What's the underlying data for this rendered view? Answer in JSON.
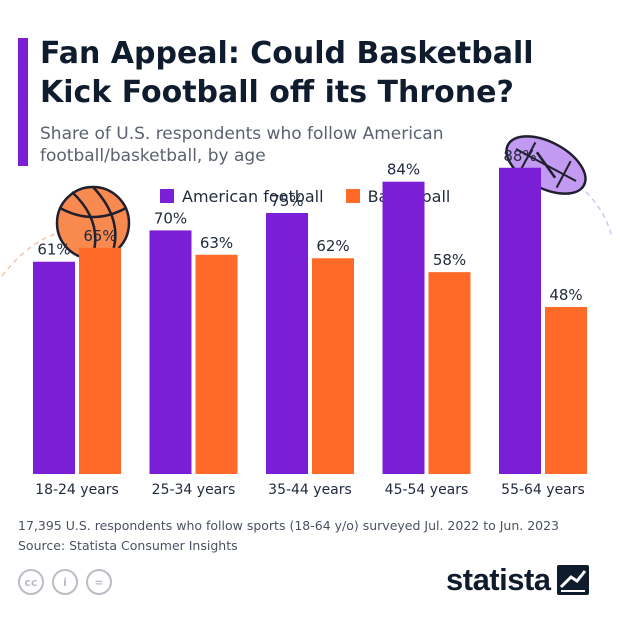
{
  "title": "Fan Appeal: Could Basketball Kick Football off its Throne?",
  "subtitle": "Share of U.S. respondents who follow American football/basketball, by age",
  "colors": {
    "accent": "#7a1fd6",
    "football": "#7a1fd6",
    "basketball": "#ff6a28"
  },
  "chart_data": {
    "type": "bar",
    "title": "Fan Appeal: Could Basketball Kick Football off its Throne?",
    "subtitle": "Share of U.S. respondents who follow American football/basketball, by age",
    "categories": [
      "18-24 years",
      "25-34 years",
      "35-44 years",
      "45-54 years",
      "55-64 years"
    ],
    "series": [
      {
        "name": "American football",
        "color": "#7a1fd6",
        "values": [
          61,
          70,
          75,
          84,
          88
        ],
        "labels": [
          "61%",
          "70%",
          "75%",
          "84%",
          "88%"
        ]
      },
      {
        "name": "Basketball",
        "color": "#ff6a28",
        "values": [
          65,
          63,
          62,
          58,
          48
        ],
        "labels": [
          "65%",
          "63%",
          "62%",
          "58%",
          "48%"
        ]
      }
    ],
    "ylim": [
      0,
      100
    ],
    "unit": "%",
    "grid": false,
    "legend": "top"
  },
  "footer": {
    "note": "17,395 U.S. respondents who follow sports (18-64 y/o) surveyed Jul. 2022 to Jun. 2023",
    "source": "Source: Statista Consumer Insights"
  },
  "license_icons": [
    {
      "name": "cc-icon",
      "glyph": "cc"
    },
    {
      "name": "attribution-icon",
      "glyph": "i"
    },
    {
      "name": "no-derivatives-icon",
      "glyph": "="
    }
  ],
  "brand": {
    "logo_text": "statista"
  }
}
